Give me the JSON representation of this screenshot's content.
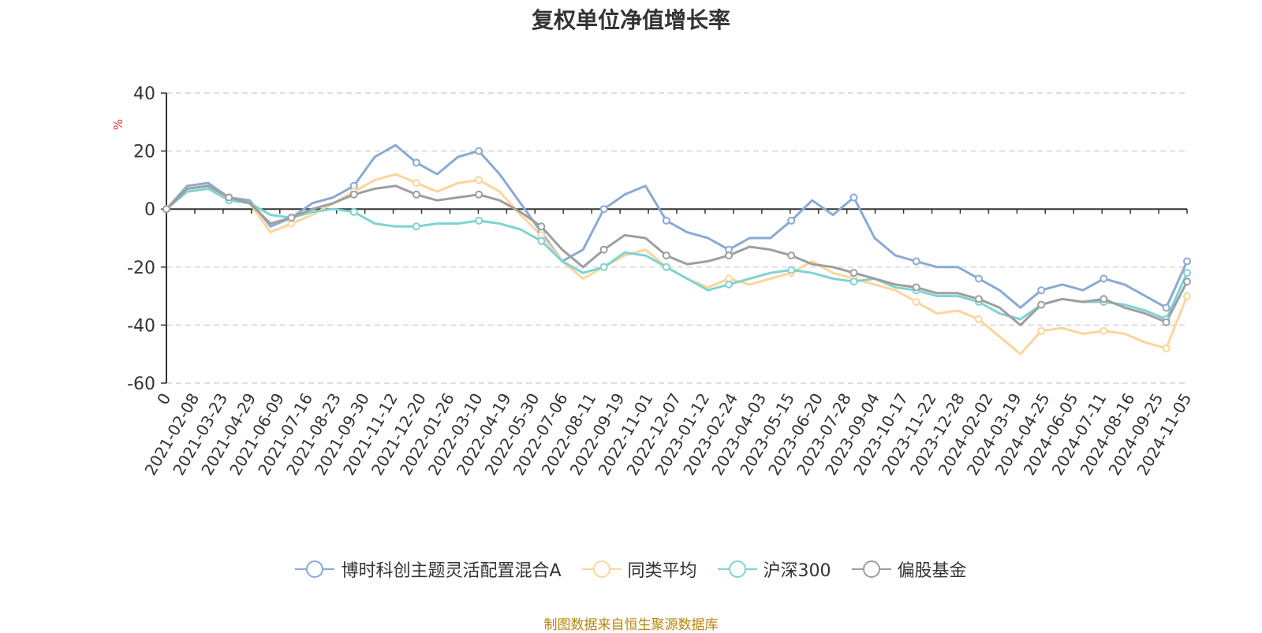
{
  "chart_data": {
    "type": "line",
    "title": "复权单位净值增长率",
    "ylabel": "%",
    "xlabel": "",
    "ylim": [
      -60,
      40
    ],
    "yticks": [
      40,
      20,
      0,
      -20,
      -40,
      -60
    ],
    "x_tick_labels": [
      "0",
      "2021-02-08",
      "2021-03-23",
      "2021-04-29",
      "2021-06-09",
      "2021-07-16",
      "2021-08-23",
      "2021-09-30",
      "2021-11-12",
      "2021-12-20",
      "2022-01-26",
      "2022-03-10",
      "2022-04-19",
      "2022-05-30",
      "2022-07-06",
      "2022-08-11",
      "2022-09-19",
      "2022-11-01",
      "2022-12-07",
      "2023-01-12",
      "2023-02-24",
      "2023-04-03",
      "2023-05-15",
      "2023-06-20",
      "2023-07-28",
      "2023-09-04",
      "2023-10-17",
      "2023-11-22",
      "2023-12-28",
      "2024-02-02",
      "2024-03-19",
      "2024-04-25",
      "2024-06-05",
      "2024-07-11",
      "2024-08-16",
      "2024-09-25",
      "2024-11-05"
    ],
    "grid": true,
    "legend_position": "bottom",
    "series": [
      {
        "name": "博时科创主题灵活配置混合A",
        "color": "#8aa9d6",
        "values": [
          0,
          8,
          9,
          4,
          3,
          -6,
          -3,
          2,
          4,
          8,
          18,
          22,
          16,
          12,
          18,
          20,
          12,
          2,
          -8,
          -18,
          -14,
          0,
          5,
          8,
          -4,
          -8,
          -10,
          -14,
          -10,
          -10,
          -4,
          3,
          -2,
          4,
          -10,
          -16,
          -18,
          -20,
          -20,
          -24,
          -28,
          -34,
          -28,
          -26,
          -28,
          -24,
          -26,
          -30,
          -34,
          -18
        ]
      },
      {
        "name": "同类平均",
        "color": "#fcd59a",
        "values": [
          0,
          7,
          8,
          4,
          2,
          -8,
          -5,
          -2,
          2,
          6,
          10,
          12,
          9,
          6,
          9,
          10,
          6,
          -2,
          -9,
          -18,
          -24,
          -20,
          -16,
          -14,
          -20,
          -24,
          -27,
          -24,
          -26,
          -24,
          -22,
          -18,
          -22,
          -24,
          -26,
          -28,
          -32,
          -36,
          -35,
          -38,
          -44,
          -50,
          -42,
          -41,
          -43,
          -42,
          -43,
          -46,
          -48,
          -30
        ]
      },
      {
        "name": "沪深300",
        "color": "#7ed3d3",
        "values": [
          0,
          6,
          7,
          3,
          2,
          -2,
          -3,
          -1,
          0,
          -1,
          -5,
          -6,
          -6,
          -5,
          -5,
          -4,
          -5,
          -7,
          -11,
          -18,
          -22,
          -20,
          -15,
          -16,
          -20,
          -24,
          -28,
          -26,
          -24,
          -22,
          -21,
          -22,
          -24,
          -25,
          -24,
          -27,
          -28,
          -30,
          -30,
          -32,
          -36,
          -38,
          -33,
          -31,
          -32,
          -32,
          -33,
          -35,
          -38,
          -22
        ]
      },
      {
        "name": "偏股基金",
        "color": "#9e9e9e",
        "values": [
          0,
          7,
          8,
          4,
          2,
          -5,
          -3,
          0,
          2,
          5,
          7,
          8,
          5,
          3,
          4,
          5,
          3,
          -1,
          -6,
          -14,
          -20,
          -14,
          -9,
          -10,
          -16,
          -19,
          -18,
          -16,
          -13,
          -14,
          -16,
          -19,
          -20,
          -22,
          -24,
          -26,
          -27,
          -29,
          -29,
          -31,
          -34,
          -40,
          -33,
          -31,
          -32,
          -31,
          -34,
          -36,
          -39,
          -25
        ]
      }
    ]
  },
  "legend_labels": [
    "博时科创主题灵活配置混合A",
    "同类平均",
    "沪深300",
    "偏股基金"
  ],
  "source_note": "制图数据来自恒生聚源数据库"
}
